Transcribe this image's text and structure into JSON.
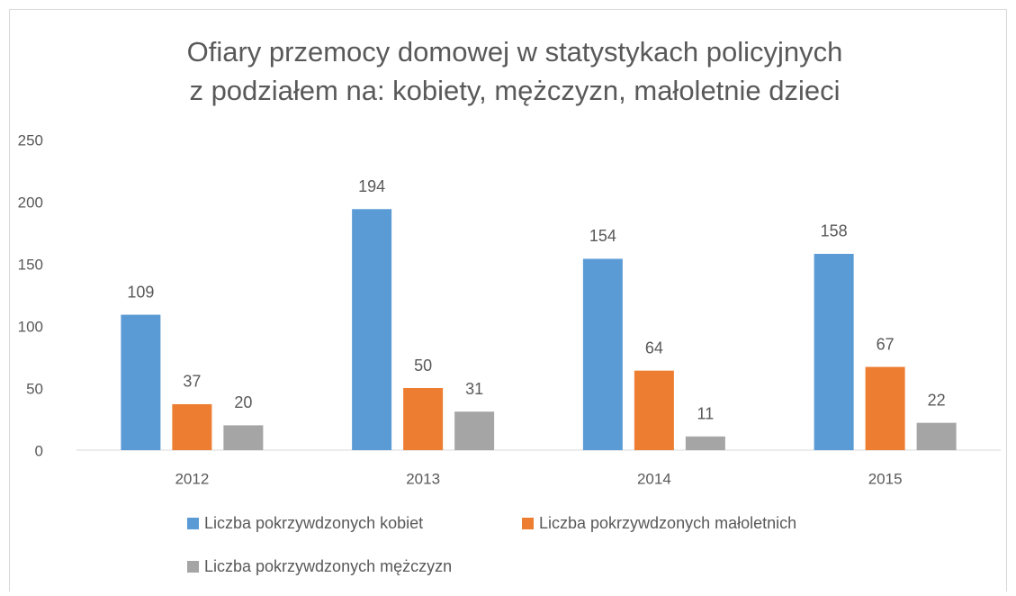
{
  "chart_data": {
    "type": "bar",
    "title": [
      "Ofiary przemocy domowej w statystykach policyjnych",
      "z podziałem na: kobiety, mężczyzn, małoletnie dzieci"
    ],
    "categories": [
      "2012",
      "2013",
      "2014",
      "2015"
    ],
    "series": [
      {
        "name": "Liczba pokrzywdzonych kobiet",
        "color": "#5b9bd5",
        "values": [
          109,
          194,
          154,
          158
        ]
      },
      {
        "name": "Liczba pokrzywdzonych małoletnich",
        "color": "#ed7d31",
        "values": [
          37,
          50,
          64,
          67
        ]
      },
      {
        "name": "Liczba pokrzywdzonych mężczyzn",
        "color": "#a5a5a5",
        "values": [
          20,
          31,
          11,
          22
        ]
      }
    ],
    "ylim": [
      0,
      250
    ],
    "yticks": [
      0,
      50,
      100,
      150,
      200,
      250
    ],
    "grid": false,
    "data_labels": true,
    "legend": "bottom"
  }
}
